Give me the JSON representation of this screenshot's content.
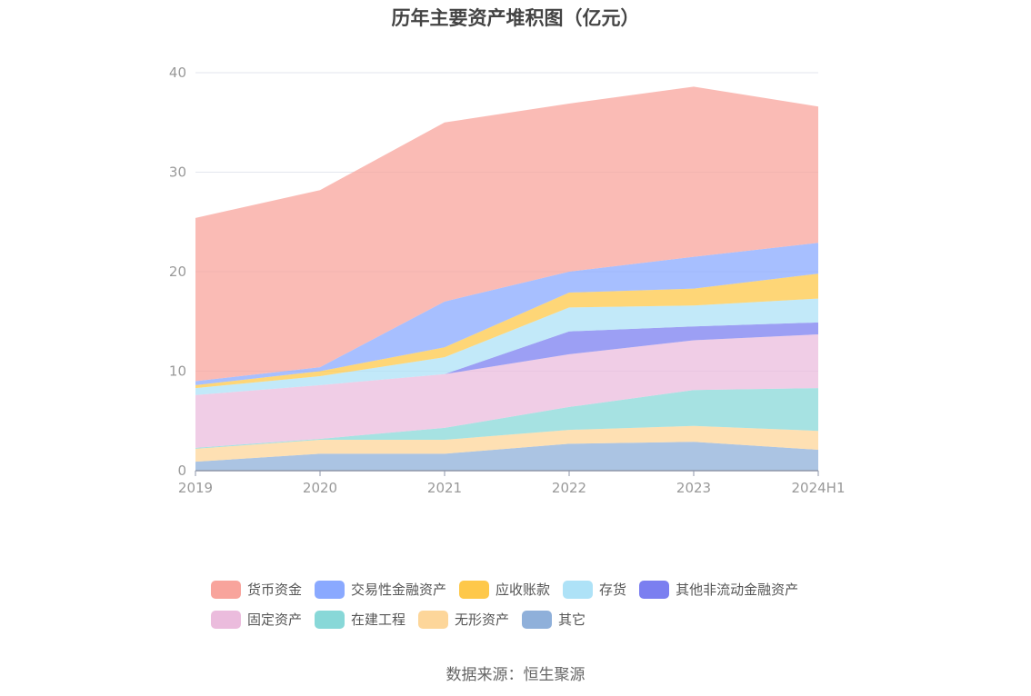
{
  "chart_data": {
    "type": "area",
    "title": "历年主要资产堆积图（亿元）",
    "categories": [
      "2019",
      "2020",
      "2021",
      "2022",
      "2023",
      "2024H1"
    ],
    "ylim": [
      0,
      40
    ],
    "yticks": [
      0,
      10,
      20,
      30,
      40
    ],
    "grid": true,
    "legend_position": "bottom",
    "series": [
      {
        "name": "其它",
        "color": "#8fb0da",
        "values": [
          0.9,
          1.7,
          1.7,
          2.7,
          2.9,
          2.1
        ]
      },
      {
        "name": "无形资产",
        "color": "#fdd69a",
        "values": [
          1.3,
          1.4,
          1.4,
          1.4,
          1.6,
          1.9
        ]
      },
      {
        "name": "在建工程",
        "color": "#88d8d8",
        "values": [
          0.1,
          0.1,
          1.2,
          2.3,
          3.6,
          4.3
        ]
      },
      {
        "name": "固定资产",
        "color": "#ebbcdd",
        "values": [
          5.3,
          5.4,
          5.4,
          5.3,
          5.0,
          5.4
        ]
      },
      {
        "name": "其他非流动金融资产",
        "color": "#7b7ff0",
        "values": [
          0,
          0,
          0,
          2.3,
          1.4,
          1.2
        ]
      },
      {
        "name": "存货",
        "color": "#aee2f7",
        "values": [
          0.7,
          0.9,
          1.7,
          2.4,
          2.1,
          2.4
        ]
      },
      {
        "name": "应收账款",
        "color": "#fec84a",
        "values": [
          0.3,
          0.5,
          1.0,
          1.5,
          1.7,
          2.5
        ]
      },
      {
        "name": "交易性金融资产",
        "color": "#8aa9ff",
        "values": [
          0.4,
          0.4,
          4.6,
          2.1,
          3.2,
          3.1
        ]
      },
      {
        "name": "货币资金",
        "color": "#f8a49c",
        "values": [
          16.4,
          17.8,
          18.0,
          16.9,
          17.1,
          13.7
        ]
      }
    ]
  },
  "legend": {
    "row1": [
      "货币资金",
      "交易性金融资产",
      "应收账款",
      "存货",
      "其他非流动金融资产"
    ],
    "row2": [
      "固定资产",
      "在建工程",
      "无形资产",
      "其它"
    ]
  },
  "source": "数据来源：恒生聚源"
}
